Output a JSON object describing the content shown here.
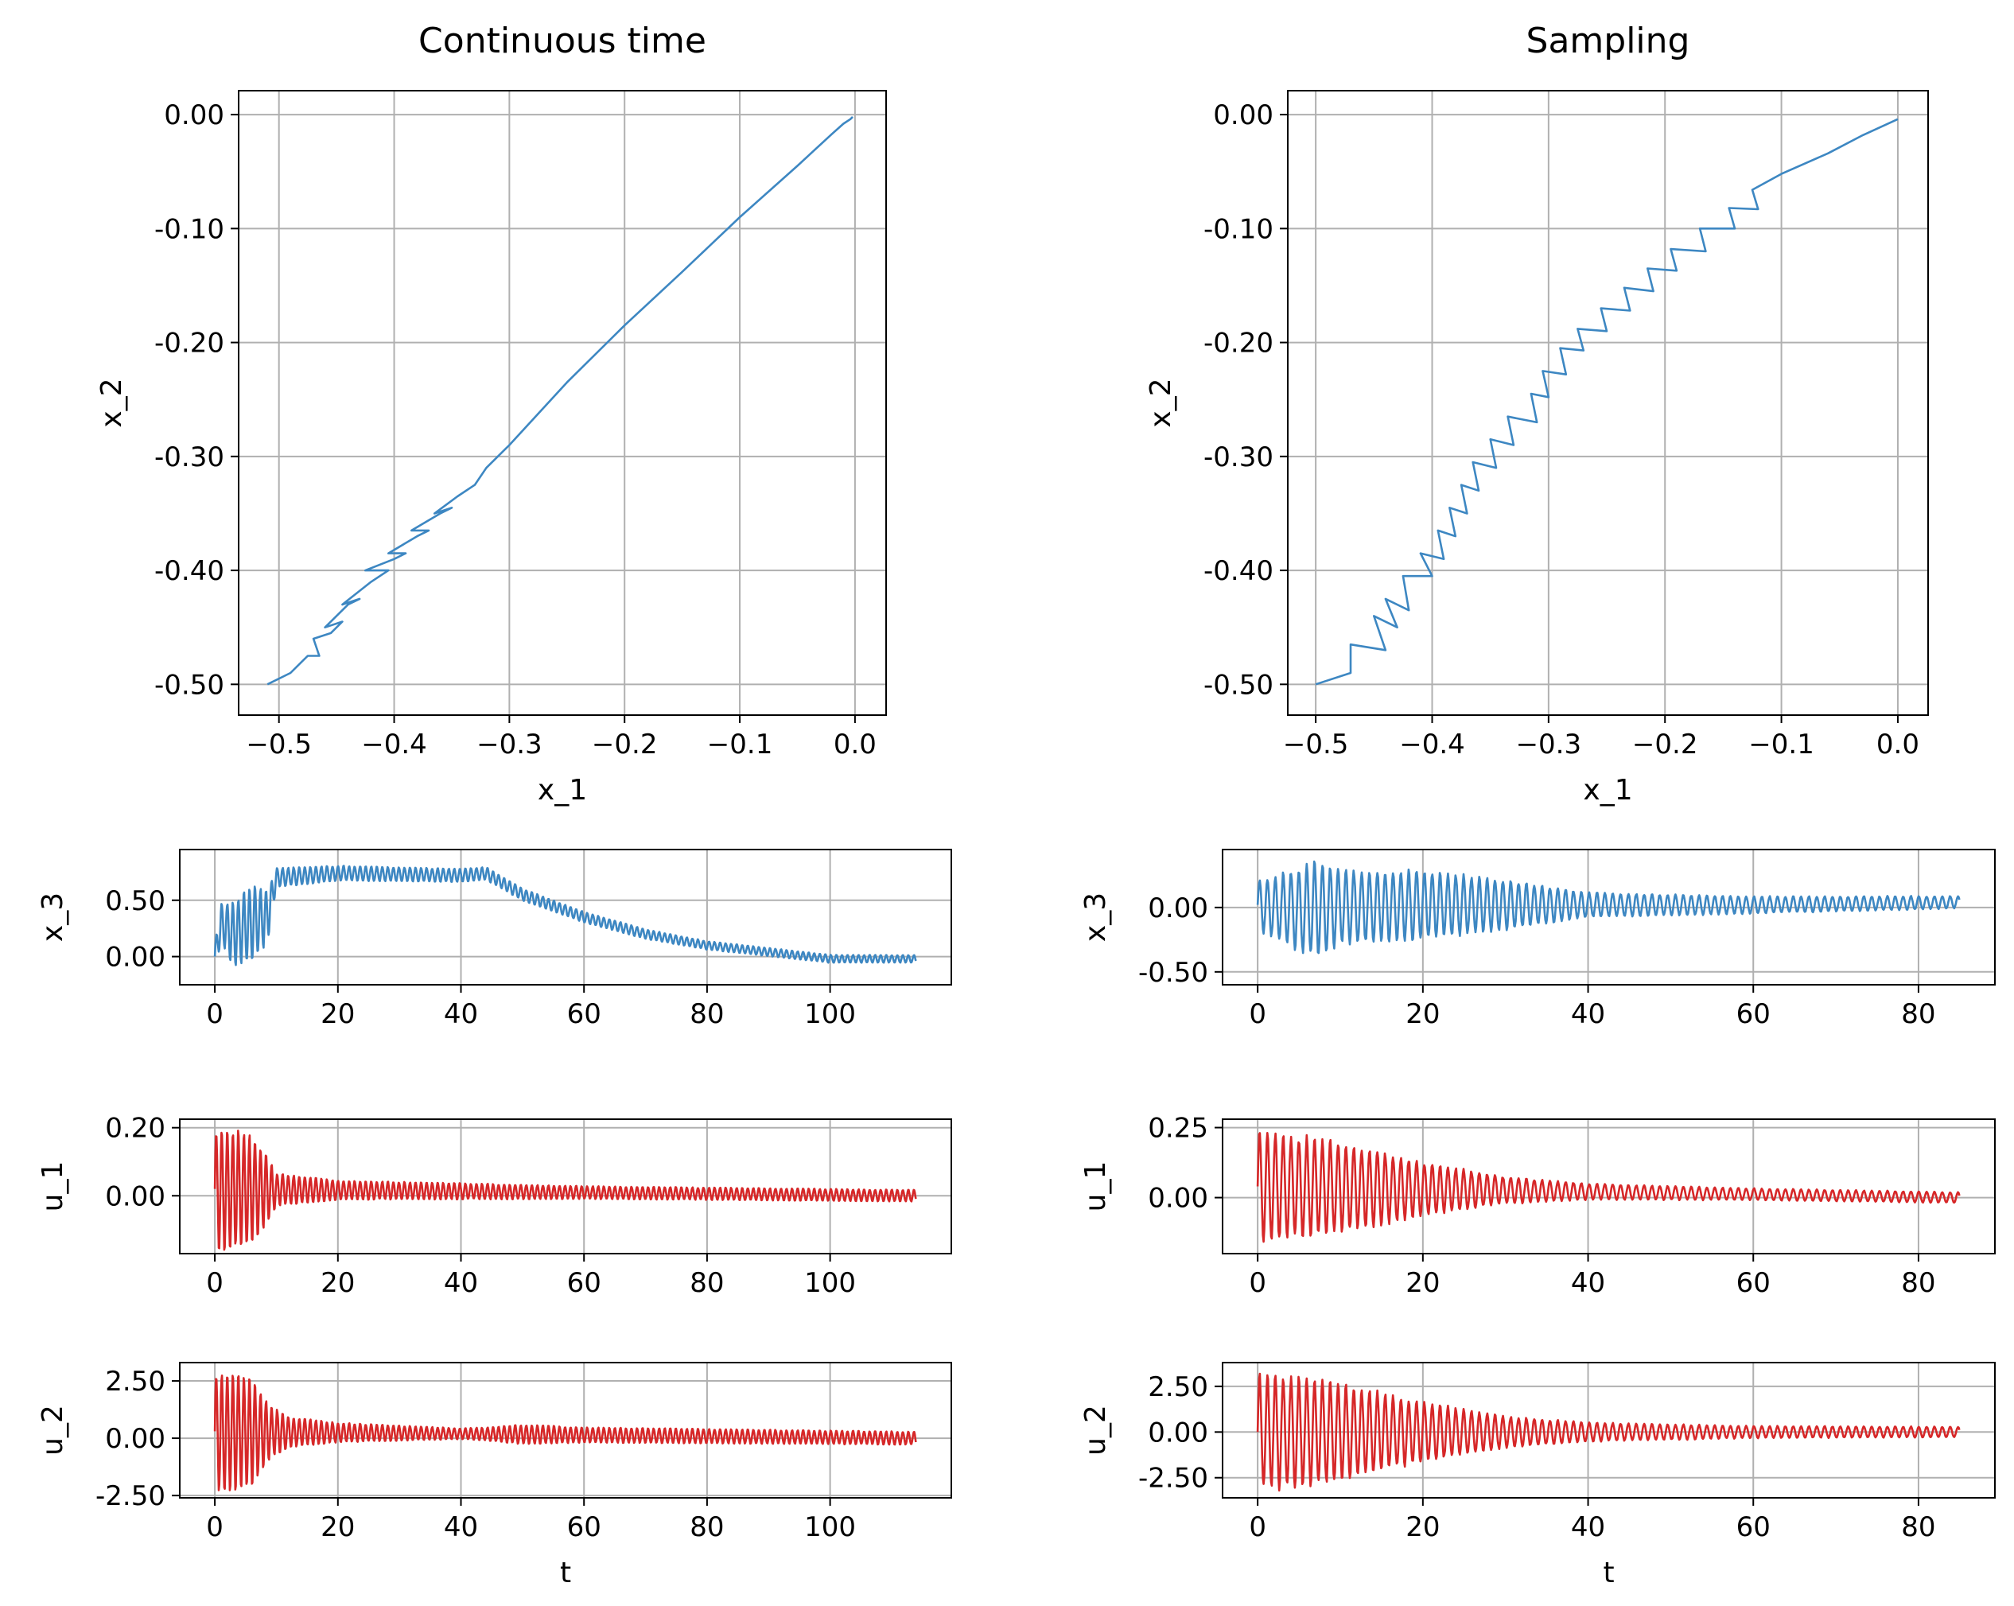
{
  "colors": {
    "blue": "#3d87c2",
    "red": "#d62728",
    "grid": "#b0b0b0",
    "axis": "#000000"
  },
  "chart_data": [
    {
      "id": "ct_phase",
      "type": "line",
      "title": "Continuous time",
      "xlabel": "x_1",
      "ylabel": "x_2",
      "xlim": [
        -0.535,
        0.027
      ],
      "ylim": [
        -0.527,
        0.021
      ],
      "xticks": [
        -0.5,
        -0.4,
        -0.3,
        -0.2,
        -0.1,
        0.0
      ],
      "xtick_labels": [
        "−0.5",
        "−0.4",
        "−0.3",
        "−0.2",
        "−0.1",
        "0.0"
      ],
      "yticks": [
        0.0,
        -0.1,
        -0.2,
        -0.3,
        -0.4,
        -0.5
      ],
      "ytick_labels": [
        "0.00",
        "-0.10",
        "-0.20",
        "-0.30",
        "-0.40",
        "-0.50"
      ],
      "grid": true,
      "color": "blue",
      "series": [
        {
          "name": "trajectory",
          "x": [
            -0.51,
            -0.49,
            -0.475,
            -0.465,
            -0.47,
            -0.455,
            -0.445,
            -0.46,
            -0.44,
            -0.43,
            -0.445,
            -0.42,
            -0.405,
            -0.425,
            -0.4,
            -0.39,
            -0.405,
            -0.38,
            -0.37,
            -0.385,
            -0.36,
            -0.35,
            -0.365,
            -0.345,
            -0.33,
            -0.32,
            -0.3,
            -0.25,
            -0.2,
            -0.15,
            -0.1,
            -0.05,
            -0.02,
            -0.01,
            -0.004,
            -0.002
          ],
          "y": [
            -0.5,
            -0.49,
            -0.475,
            -0.475,
            -0.46,
            -0.455,
            -0.445,
            -0.45,
            -0.43,
            -0.425,
            -0.43,
            -0.41,
            -0.4,
            -0.4,
            -0.39,
            -0.385,
            -0.385,
            -0.37,
            -0.365,
            -0.365,
            -0.35,
            -0.345,
            -0.35,
            -0.335,
            -0.325,
            -0.31,
            -0.29,
            -0.235,
            -0.185,
            -0.138,
            -0.09,
            -0.045,
            -0.017,
            -0.008,
            -0.004,
            -0.002
          ]
        }
      ]
    },
    {
      "id": "s_phase",
      "type": "line",
      "title": "Sampling",
      "xlabel": "x_1",
      "ylabel": "x_2",
      "xlim": [
        -0.524,
        0.026
      ],
      "ylim": [
        -0.527,
        0.021
      ],
      "xticks": [
        -0.5,
        -0.4,
        -0.3,
        -0.2,
        -0.1,
        0.0
      ],
      "xtick_labels": [
        "−0.5",
        "−0.4",
        "−0.3",
        "−0.2",
        "−0.1",
        "0.0"
      ],
      "yticks": [
        0.0,
        -0.1,
        -0.2,
        -0.3,
        -0.4,
        -0.5
      ],
      "ytick_labels": [
        "0.00",
        "-0.10",
        "-0.20",
        "-0.30",
        "-0.40",
        "-0.50"
      ],
      "grid": true,
      "color": "blue",
      "series": [
        {
          "name": "trajectory",
          "x": [
            -0.5,
            -0.47,
            -0.47,
            -0.44,
            -0.45,
            -0.43,
            -0.44,
            -0.42,
            -0.425,
            -0.4,
            -0.41,
            -0.39,
            -0.395,
            -0.38,
            -0.385,
            -0.37,
            -0.375,
            -0.36,
            -0.365,
            -0.345,
            -0.35,
            -0.33,
            -0.335,
            -0.31,
            -0.315,
            -0.3,
            -0.305,
            -0.285,
            -0.29,
            -0.27,
            -0.275,
            -0.25,
            -0.255,
            -0.23,
            -0.235,
            -0.21,
            -0.215,
            -0.19,
            -0.195,
            -0.165,
            -0.17,
            -0.14,
            -0.145,
            -0.12,
            -0.125,
            -0.1,
            -0.06,
            -0.03,
            0.0
          ],
          "y": [
            -0.5,
            -0.49,
            -0.465,
            -0.47,
            -0.44,
            -0.45,
            -0.425,
            -0.435,
            -0.405,
            -0.405,
            -0.385,
            -0.39,
            -0.365,
            -0.37,
            -0.345,
            -0.35,
            -0.325,
            -0.33,
            -0.305,
            -0.31,
            -0.285,
            -0.29,
            -0.265,
            -0.27,
            -0.245,
            -0.248,
            -0.225,
            -0.228,
            -0.205,
            -0.207,
            -0.188,
            -0.19,
            -0.17,
            -0.172,
            -0.152,
            -0.155,
            -0.135,
            -0.137,
            -0.118,
            -0.12,
            -0.1,
            -0.1,
            -0.082,
            -0.083,
            -0.066,
            -0.052,
            -0.034,
            -0.018,
            -0.004
          ]
        }
      ]
    },
    {
      "id": "ct_x3",
      "type": "line",
      "xlabel": "",
      "ylabel": "x_3",
      "xlim": [
        -5.7,
        119.7
      ],
      "ylim": [
        -0.25,
        0.95
      ],
      "xticks": [
        0,
        20,
        40,
        60,
        80,
        100
      ],
      "xtick_labels": [
        "0",
        "20",
        "40",
        "60",
        "80",
        "100"
      ],
      "yticks": [
        0.5,
        0.0
      ],
      "ytick_labels": [
        "0.50",
        "0.00"
      ],
      "grid": true,
      "color": "blue",
      "series": [
        {
          "name": "x_3",
          "t_end": 114,
          "mean_t": [
            0,
            1,
            3,
            6,
            8.5,
            10,
            20,
            40,
            44,
            50,
            60,
            70,
            80,
            90,
            100,
            114
          ],
          "mean": [
            0,
            0.3,
            0.2,
            0.3,
            0.35,
            0.7,
            0.74,
            0.72,
            0.74,
            0.55,
            0.35,
            0.2,
            0.1,
            0.04,
            -0.02,
            -0.02
          ],
          "amp_t": [
            0,
            3,
            6,
            8.5,
            10,
            20,
            44,
            60,
            80,
            114
          ],
          "amp": [
            0.12,
            0.3,
            0.35,
            0.25,
            0.09,
            0.07,
            0.06,
            0.05,
            0.04,
            0.035
          ],
          "period": 0.9
        }
      ]
    },
    {
      "id": "s_x3",
      "type": "line",
      "xlabel": "",
      "ylabel": "x_3",
      "xlim": [
        -4.25,
        89.25
      ],
      "ylim": [
        -0.6,
        0.45
      ],
      "xticks": [
        0,
        20,
        40,
        60,
        80
      ],
      "xtick_labels": [
        "0",
        "20",
        "40",
        "60",
        "80"
      ],
      "yticks": [
        0.0,
        -0.5
      ],
      "ytick_labels": [
        "0.00",
        "-0.50"
      ],
      "grid": true,
      "color": "blue",
      "series": [
        {
          "name": "x_3",
          "t_end": 85,
          "mean_t": [
            0,
            5,
            10,
            20,
            40,
            60,
            85
          ],
          "mean": [
            0.02,
            -0.02,
            0.0,
            0.02,
            0.02,
            0.02,
            0.04
          ],
          "amp_t": [
            0,
            3,
            7,
            10,
            20,
            30,
            40,
            60,
            85
          ],
          "amp": [
            0.2,
            0.28,
            0.4,
            0.3,
            0.28,
            0.2,
            0.1,
            0.07,
            0.05
          ],
          "period": 0.95
        }
      ]
    },
    {
      "id": "ct_u1",
      "type": "line",
      "xlabel": "",
      "ylabel": "u_1",
      "xlim": [
        -5.7,
        119.7
      ],
      "ylim": [
        -0.17,
        0.225
      ],
      "xticks": [
        0,
        20,
        40,
        60,
        80,
        100
      ],
      "xtick_labels": [
        "0",
        "20",
        "40",
        "60",
        "80",
        "100"
      ],
      "yticks": [
        0.2,
        0.0
      ],
      "ytick_labels": [
        "0.20",
        "0.00"
      ],
      "grid": true,
      "color": "red",
      "series": [
        {
          "name": "u_1",
          "t_end": 114,
          "mean_t": [
            0,
            114
          ],
          "mean": [
            0.02,
            0.0
          ],
          "amp_t": [
            0,
            2,
            5,
            8,
            10,
            20,
            40,
            60,
            114
          ],
          "amp": [
            0.18,
            0.19,
            0.18,
            0.12,
            0.05,
            0.03,
            0.025,
            0.02,
            0.018
          ],
          "period": 0.9
        }
      ]
    },
    {
      "id": "s_u1",
      "type": "line",
      "xlabel": "",
      "ylabel": "u_1",
      "xlim": [
        -4.25,
        89.25
      ],
      "ylim": [
        -0.2,
        0.28
      ],
      "xticks": [
        0,
        20,
        40,
        60,
        80
      ],
      "xtick_labels": [
        "0",
        "20",
        "40",
        "60",
        "80"
      ],
      "yticks": [
        0.25,
        0.0
      ],
      "ytick_labels": [
        "0.25",
        "0.00"
      ],
      "grid": true,
      "color": "red",
      "series": [
        {
          "name": "u_1",
          "t_end": 85,
          "mean_t": [
            0,
            85
          ],
          "mean": [
            0.04,
            0.0
          ],
          "amp_t": [
            0,
            10,
            20,
            30,
            40,
            60,
            85
          ],
          "amp": [
            0.21,
            0.17,
            0.1,
            0.05,
            0.03,
            0.022,
            0.02
          ],
          "period": 0.95
        }
      ]
    },
    {
      "id": "ct_u2",
      "type": "line",
      "xlabel": "t",
      "ylabel": "u_2",
      "xlim": [
        -5.7,
        119.7
      ],
      "ylim": [
        -2.6,
        3.3
      ],
      "xticks": [
        0,
        20,
        40,
        60,
        80,
        100
      ],
      "xtick_labels": [
        "0",
        "20",
        "40",
        "60",
        "80",
        "100"
      ],
      "yticks": [
        2.5,
        0.0,
        -2.5
      ],
      "ytick_labels": [
        "2.50",
        "0.00",
        "-2.50"
      ],
      "grid": true,
      "color": "red",
      "series": [
        {
          "name": "u_2",
          "t_end": 114,
          "mean_t": [
            0,
            114
          ],
          "mean": [
            0.3,
            0.0
          ],
          "amp_t": [
            0,
            3,
            6,
            9,
            12,
            20,
            40,
            44,
            50,
            60,
            114
          ],
          "amp": [
            2.7,
            2.7,
            2.4,
            1.2,
            0.7,
            0.45,
            0.25,
            0.3,
            0.45,
            0.35,
            0.3
          ],
          "period": 0.9
        }
      ]
    },
    {
      "id": "s_u2",
      "type": "line",
      "xlabel": "t",
      "ylabel": "u_2",
      "xlim": [
        -4.25,
        89.25
      ],
      "ylim": [
        -3.6,
        3.8
      ],
      "xticks": [
        0,
        20,
        40,
        60,
        80
      ],
      "xtick_labels": [
        "0",
        "20",
        "40",
        "60",
        "80"
      ],
      "yticks": [
        2.5,
        0.0,
        -2.5
      ],
      "ytick_labels": [
        "2.50",
        "0.00",
        "-2.50"
      ],
      "grid": true,
      "color": "red",
      "series": [
        {
          "name": "u_2",
          "t_end": 85,
          "mean_t": [
            0,
            85
          ],
          "mean": [
            0.0,
            0.0
          ],
          "amp_t": [
            0,
            5,
            10,
            20,
            30,
            40,
            60,
            85
          ],
          "amp": [
            3.3,
            3.2,
            2.8,
            1.7,
            0.9,
            0.55,
            0.35,
            0.3
          ],
          "period": 0.95
        }
      ]
    }
  ]
}
